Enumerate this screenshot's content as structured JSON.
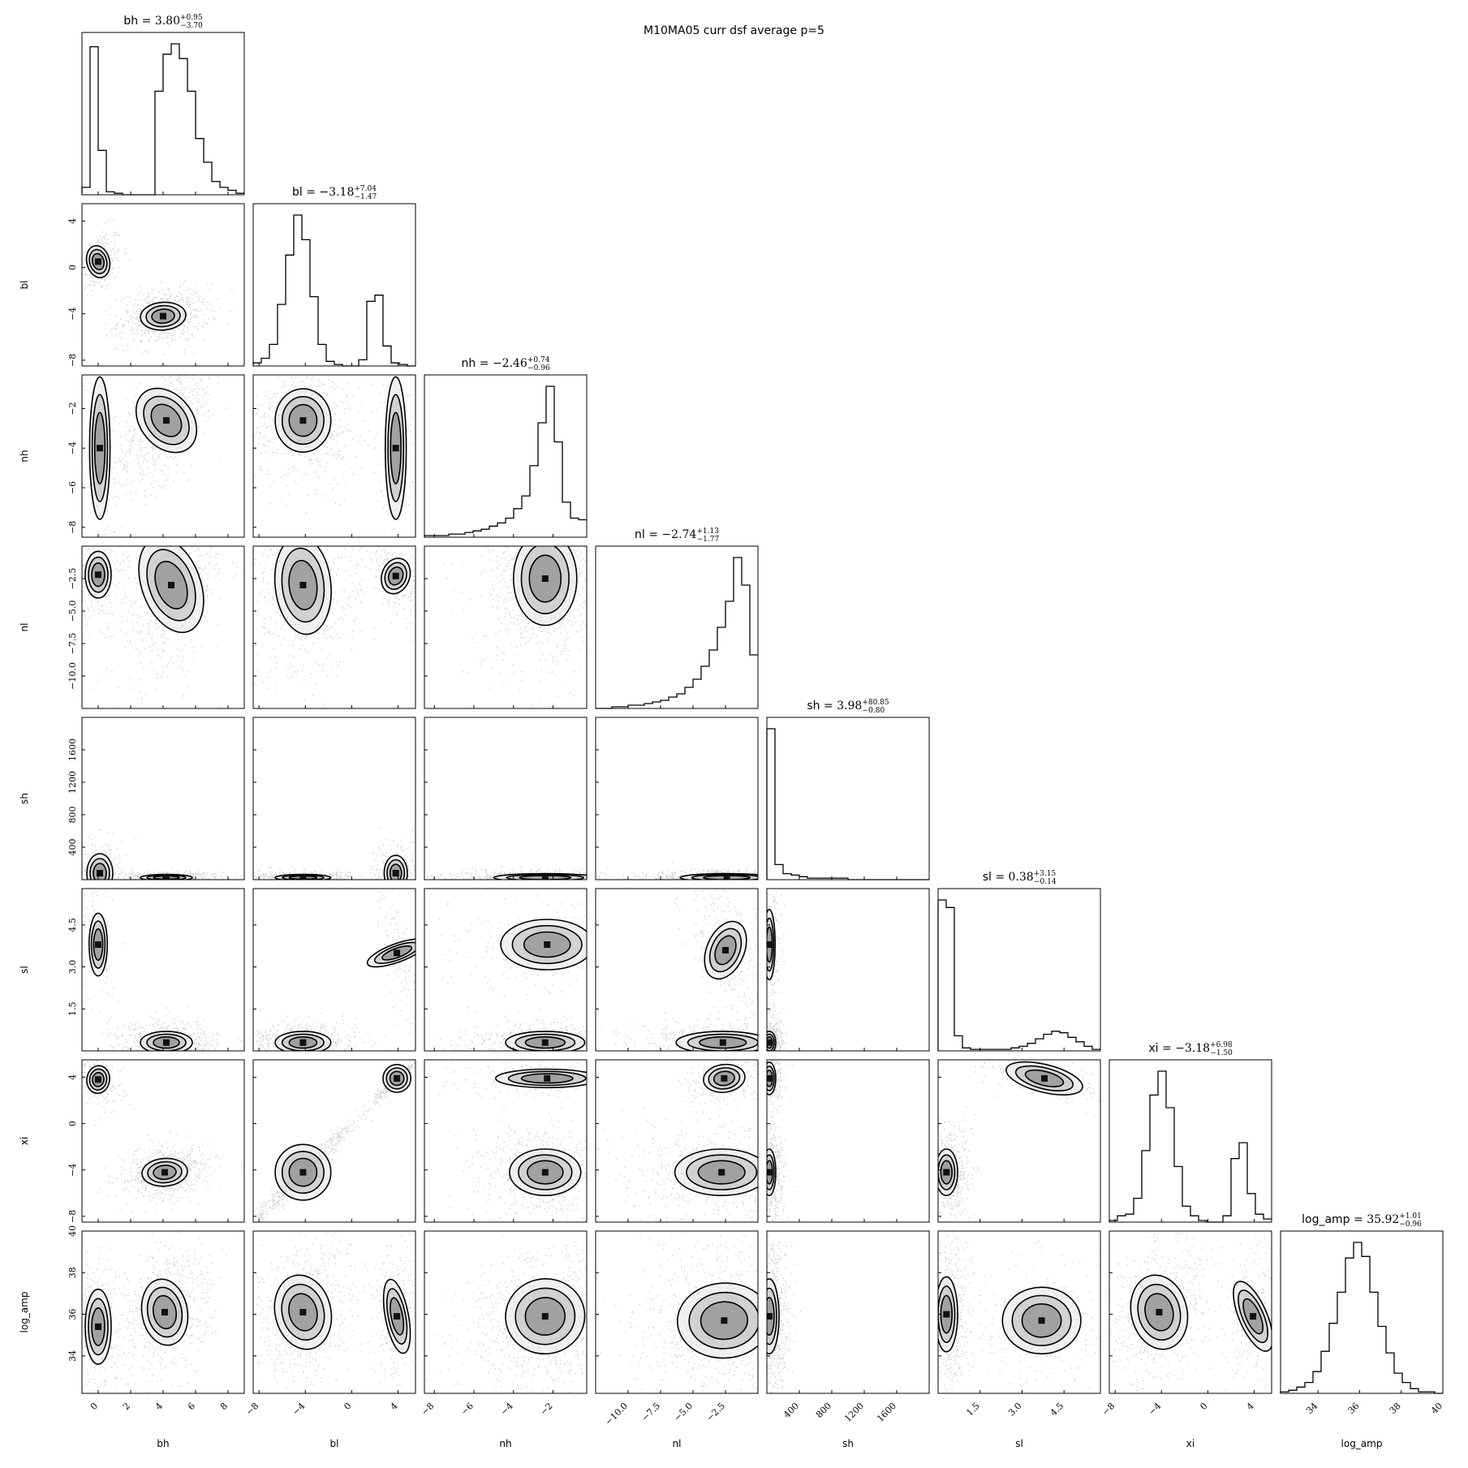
{
  "figure": {
    "suptitle": "M10MA05 curr dsf average p=5"
  },
  "chart_data": {
    "type": "corner",
    "parameters": [
      "bh",
      "bl",
      "nh",
      "nl",
      "sh",
      "sl",
      "xi",
      "log_amp"
    ],
    "axis_labels": [
      "bh",
      "bl",
      "nh",
      "nl",
      "sh",
      "sl",
      "xi",
      "log_amp"
    ],
    "ranges": {
      "bh": [
        -1,
        9
      ],
      "bl": [
        -8.5,
        5.5
      ],
      "nh": [
        -8.5,
        -0.3
      ],
      "nl": [
        -12.5,
        0
      ],
      "sh": [
        0,
        2000
      ],
      "sl": [
        0,
        5.8
      ],
      "xi": [
        -8.5,
        5.5
      ],
      "log_amp": [
        32.2,
        40
      ]
    },
    "ticks": {
      "bh": [
        "0",
        "2",
        "4",
        "6",
        "8"
      ],
      "bl": [
        "−8",
        "−4",
        "0",
        "4"
      ],
      "nh": [
        "−8",
        "−6",
        "−4",
        "−2"
      ],
      "nl": [
        "−10.0",
        "−7.5",
        "−5.0",
        "−2.5"
      ],
      "sh": [
        "400",
        "800",
        "1200",
        "1600"
      ],
      "sl": [
        "1.5",
        "3.0",
        "4.5"
      ],
      "xi": [
        "−8",
        "−4",
        "0",
        "4"
      ],
      "log_amp": [
        "34",
        "36",
        "38",
        "40"
      ]
    },
    "tick_values": {
      "bh": [
        0,
        2,
        4,
        6,
        8
      ],
      "bl": [
        -8,
        -4,
        0,
        4
      ],
      "nh": [
        -8,
        -6,
        -4,
        -2
      ],
      "nl": [
        -10,
        -7.5,
        -5,
        -2.5
      ],
      "sh": [
        400,
        800,
        1200,
        1600
      ],
      "sl": [
        1.5,
        3.0,
        4.5
      ],
      "xi": [
        -8,
        -4,
        0,
        4
      ],
      "log_amp": [
        34,
        36,
        38,
        40
      ]
    },
    "y_ticks_diagonal_hidden": true,
    "titles": [
      {
        "name": "bh",
        "median": "3.80",
        "plus": "+0.95",
        "minus": "−3.70"
      },
      {
        "name": "bl",
        "median": "−3.18",
        "plus": "+7.04",
        "minus": "−1.47"
      },
      {
        "name": "nh",
        "median": "−2.46",
        "plus": "+0.74",
        "minus": "−0.96"
      },
      {
        "name": "nl",
        "median": "−2.74",
        "plus": "+1.13",
        "minus": "−1.77"
      },
      {
        "name": "sh",
        "median": "3.98",
        "plus": "+80.85",
        "minus": "−0.80"
      },
      {
        "name": "sl",
        "median": "0.38",
        "plus": "+3.15",
        "minus": "−0.14"
      },
      {
        "name": "xi",
        "median": "−3.18",
        "plus": "+6.98",
        "minus": "−1.50"
      },
      {
        "name": "log_amp",
        "median": "35.92",
        "plus": "+1.01",
        "minus": "−0.96"
      }
    ],
    "histograms": {
      "bh": {
        "edges_start": -1.0,
        "bin_width": 0.5,
        "counts": [
          5,
          100,
          30,
          2,
          1,
          0,
          0,
          0,
          0,
          70,
          95,
          102,
          92,
          70,
          38,
          22,
          9,
          5,
          3,
          1
        ]
      },
      "bl": {
        "edges_start": -8.5,
        "bin_width": 0.7,
        "counts": [
          2,
          5,
          14,
          40,
          72,
          98,
          82,
          45,
          14,
          3,
          1,
          0,
          0,
          4,
          42,
          46,
          13,
          2,
          1,
          0
        ]
      },
      "nh": {
        "edges_start": -8.5,
        "bin_width": 0.41,
        "counts": [
          1,
          1,
          1,
          2,
          2,
          3,
          4,
          5,
          7,
          9,
          12,
          18,
          26,
          45,
          72,
          95,
          60,
          22,
          12,
          11
        ]
      },
      "nl": {
        "edges_start": -12.5,
        "bin_width": 0.625,
        "counts": [
          0,
          0,
          1,
          1,
          2,
          2,
          3,
          4,
          5,
          7,
          9,
          13,
          18,
          26,
          36,
          50,
          66,
          93,
          76,
          33
        ]
      },
      "sh": {
        "edges_start": 0,
        "bin_width": 100,
        "counts": [
          100,
          10,
          4,
          3,
          2,
          1,
          1,
          1,
          1,
          1,
          0,
          0,
          0,
          0,
          0,
          0,
          0,
          0,
          0,
          0
        ]
      },
      "sl": {
        "edges_start": 0,
        "bin_width": 0.29,
        "counts": [
          100,
          95,
          10,
          2,
          1,
          1,
          1,
          1,
          1,
          2,
          3,
          5,
          8,
          11,
          13,
          12,
          9,
          6,
          3,
          1
        ]
      },
      "xi": {
        "edges_start": -8.5,
        "bin_width": 0.7,
        "counts": [
          1,
          4,
          5,
          15,
          45,
          80,
          95,
          72,
          35,
          10,
          4,
          1,
          0,
          0,
          4,
          40,
          50,
          18,
          5,
          2
        ]
      },
      "log_amp": {
        "edges_start": 32.2,
        "bin_width": 0.39,
        "counts": [
          1,
          2,
          4,
          7,
          14,
          27,
          45,
          65,
          87,
          97,
          88,
          65,
          43,
          26,
          13,
          7,
          3,
          1,
          1,
          0
        ]
      }
    },
    "modes": [
      [
        0,
        1,
        0,
        0.5,
        0.35,
        0.7,
        0.3,
        1.0,
        1.0
      ],
      [
        0,
        1,
        4.0,
        -4.2,
        0.7,
        0.6,
        0.2,
        2.3,
        1.0
      ],
      [
        0,
        2,
        0.1,
        -4.0,
        0.35,
        2.0,
        0.0,
        0.5,
        0.9
      ],
      [
        0,
        2,
        4.2,
        -2.6,
        0.8,
        0.9,
        0.6,
        2.3,
        1.0
      ],
      [
        0,
        3,
        0.0,
        -2.2,
        0.4,
        0.9,
        0.0,
        1.0,
        1.0
      ],
      [
        0,
        3,
        4.5,
        -3.0,
        0.9,
        1.9,
        0.4,
        2.3,
        1.0
      ],
      [
        0,
        4,
        0.1,
        80,
        0.4,
        120,
        0.0,
        1.0,
        1.0
      ],
      [
        0,
        4,
        4.2,
        25,
        0.8,
        20,
        0.0,
        2.3,
        1.0
      ],
      [
        0,
        5,
        0.0,
        3.8,
        0.35,
        0.7,
        0.0,
        0.5,
        0.8
      ],
      [
        0,
        5,
        4.2,
        0.3,
        0.8,
        0.2,
        0.0,
        2.3,
        1.0
      ],
      [
        0,
        6,
        0.0,
        3.8,
        0.35,
        0.6,
        -0.2,
        1.0,
        1.0
      ],
      [
        0,
        6,
        4.1,
        -4.2,
        0.7,
        0.6,
        0.2,
        2.3,
        1.0
      ],
      [
        0,
        7,
        0.0,
        35.4,
        0.4,
        0.9,
        0.0,
        1.0,
        1.0
      ],
      [
        0,
        7,
        4.1,
        36.1,
        0.7,
        0.8,
        0.2,
        2.3,
        1.0
      ],
      [
        1,
        2,
        3.8,
        -4.0,
        0.5,
        2.0,
        0.0,
        0.5,
        0.9
      ],
      [
        1,
        2,
        -4.2,
        -2.6,
        1.2,
        0.8,
        0.0,
        2.3,
        1.0
      ],
      [
        1,
        3,
        3.8,
        -2.3,
        0.6,
        0.7,
        -0.5,
        1.0,
        1.0
      ],
      [
        1,
        3,
        -4.2,
        -3.0,
        1.2,
        1.9,
        0.1,
        2.3,
        1.0
      ],
      [
        1,
        4,
        3.8,
        80,
        0.5,
        110,
        0.0,
        1.0,
        1.0
      ],
      [
        1,
        4,
        -4.2,
        25,
        1.2,
        20,
        0.0,
        2.3,
        1.0
      ],
      [
        1,
        5,
        3.9,
        3.5,
        0.5,
        0.7,
        -0.8,
        0.5,
        0.8
      ],
      [
        1,
        5,
        -4.2,
        0.3,
        1.2,
        0.2,
        0.0,
        2.3,
        1.0
      ],
      [
        1,
        6,
        3.9,
        3.9,
        0.6,
        0.6,
        0.97,
        1.0,
        1.0
      ],
      [
        1,
        6,
        -4.2,
        -4.2,
        1.2,
        1.2,
        0.98,
        2.3,
        1.0
      ],
      [
        1,
        7,
        3.9,
        35.9,
        0.5,
        0.9,
        0.1,
        1.0,
        1.0
      ],
      [
        1,
        7,
        -4.2,
        36.1,
        1.2,
        0.9,
        0.3,
        2.3,
        1.0
      ],
      [
        2,
        3,
        -2.4,
        -2.5,
        0.8,
        1.8,
        0.0,
        3.3,
        1.0
      ],
      [
        2,
        4,
        -2.4,
        25,
        1.3,
        25,
        0.0,
        3.3,
        1.0
      ],
      [
        2,
        5,
        -2.3,
        3.8,
        1.3,
        0.5,
        0.0,
        1.0,
        0.9
      ],
      [
        2,
        5,
        -2.4,
        0.3,
        1.0,
        0.2,
        0.0,
        2.3,
        1.0
      ],
      [
        2,
        6,
        -2.3,
        3.9,
        1.3,
        0.4,
        0.0,
        1.0,
        1.0
      ],
      [
        2,
        6,
        -2.4,
        -4.2,
        0.9,
        1.0,
        0.0,
        2.3,
        1.0
      ],
      [
        2,
        7,
        -2.4,
        35.9,
        1.0,
        0.9,
        0.2,
        3.3,
        1.0
      ],
      [
        3,
        4,
        -2.4,
        25,
        1.8,
        25,
        0.0,
        3.3,
        1.0
      ],
      [
        3,
        5,
        -2.5,
        3.6,
        0.8,
        0.6,
        -0.5,
        1.0,
        0.9
      ],
      [
        3,
        5,
        -2.7,
        0.3,
        1.8,
        0.2,
        0.0,
        2.3,
        1.0
      ],
      [
        3,
        6,
        -2.6,
        3.9,
        0.8,
        0.6,
        0.3,
        1.0,
        1.0
      ],
      [
        3,
        6,
        -2.8,
        -4.2,
        1.8,
        1.0,
        0.0,
        2.3,
        1.0
      ],
      [
        3,
        7,
        -2.6,
        35.7,
        1.8,
        0.9,
        0.1,
        3.3,
        1.0
      ],
      [
        4,
        5,
        30,
        3.8,
        40,
        0.7,
        0.0,
        1.0,
        0.9
      ],
      [
        4,
        5,
        30,
        0.3,
        40,
        0.2,
        0.0,
        2.3,
        1.0
      ],
      [
        4,
        6,
        30,
        3.9,
        40,
        0.7,
        0.0,
        1.0,
        1.0
      ],
      [
        4,
        6,
        30,
        -4.2,
        40,
        1.0,
        0.0,
        2.3,
        1.0
      ],
      [
        4,
        7,
        30,
        35.9,
        60,
        0.9,
        0.0,
        3.3,
        1.0
      ],
      [
        5,
        6,
        3.8,
        3.9,
        0.7,
        0.6,
        -0.7,
        1.0,
        1.0
      ],
      [
        5,
        6,
        0.3,
        -4.2,
        0.2,
        1.0,
        0.0,
        2.3,
        1.0
      ],
      [
        5,
        7,
        3.7,
        35.7,
        0.7,
        0.8,
        0.0,
        1.0,
        1.0
      ],
      [
        5,
        7,
        0.3,
        36.0,
        0.2,
        0.9,
        0.0,
        2.3,
        1.0
      ],
      [
        6,
        7,
        3.9,
        35.9,
        0.6,
        0.9,
        0.3,
        1.0,
        1.0
      ],
      [
        6,
        7,
        -4.2,
        36.1,
        1.2,
        0.9,
        0.3,
        2.3,
        1.0
      ]
    ],
    "modes_columns": [
      "col_param",
      "row_param",
      "x_center",
      "y_center",
      "x_sigma",
      "y_sigma",
      "correlation",
      "density_weight",
      "contour_scale"
    ],
    "contour_levels": "1σ, 1.5σ, 2σ (corner default)",
    "colors": {
      "axes": "#000000",
      "points": "#000000",
      "density": "#000000"
    }
  }
}
